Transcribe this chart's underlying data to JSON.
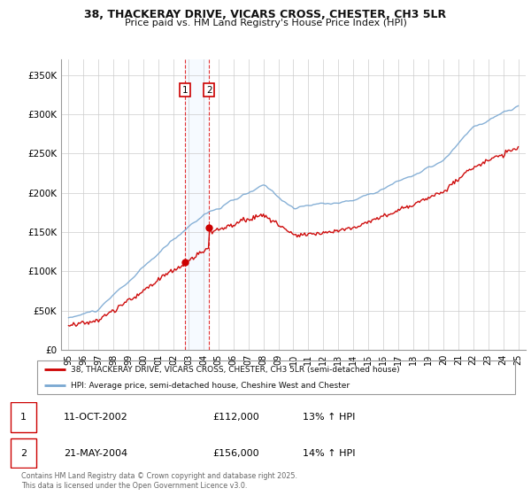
{
  "title_line1": "38, THACKERAY DRIVE, VICARS CROSS, CHESTER, CH3 5LR",
  "title_line2": "Price paid vs. HM Land Registry's House Price Index (HPI)",
  "background_color": "#ffffff",
  "grid_color": "#cccccc",
  "hpi_line_color": "#7aa8d2",
  "price_line_color": "#cc0000",
  "sale1_date_x": 2002.79,
  "sale1_price": 112000,
  "sale2_date_x": 2004.38,
  "sale2_price": 156000,
  "ylim_min": 0,
  "ylim_max": 370000,
  "xlim_min": 1994.5,
  "xlim_max": 2025.5,
  "yticks": [
    0,
    50000,
    100000,
    150000,
    200000,
    250000,
    300000,
    350000
  ],
  "ytick_labels": [
    "£0",
    "£50K",
    "£100K",
    "£150K",
    "£200K",
    "£250K",
    "£300K",
    "£350K"
  ],
  "xtick_years": [
    1995,
    1996,
    1997,
    1998,
    1999,
    2000,
    2001,
    2002,
    2003,
    2004,
    2005,
    2006,
    2007,
    2008,
    2009,
    2010,
    2011,
    2012,
    2013,
    2014,
    2015,
    2016,
    2017,
    2018,
    2019,
    2020,
    2021,
    2022,
    2023,
    2024,
    2025
  ],
  "legend_label_red": "38, THACKERAY DRIVE, VICARS CROSS, CHESTER, CH3 5LR (semi-detached house)",
  "legend_label_blue": "HPI: Average price, semi-detached house, Cheshire West and Chester",
  "footnote": "Contains HM Land Registry data © Crown copyright and database right 2025.\nThis data is licensed under the Open Government Licence v3.0.",
  "table_row1": [
    "1",
    "11-OCT-2002",
    "£112,000",
    "13% ↑ HPI"
  ],
  "table_row2": [
    "2",
    "21-MAY-2004",
    "£156,000",
    "14% ↑ HPI"
  ],
  "span_color": "#ddeeff",
  "vline_color": "#dd0000"
}
